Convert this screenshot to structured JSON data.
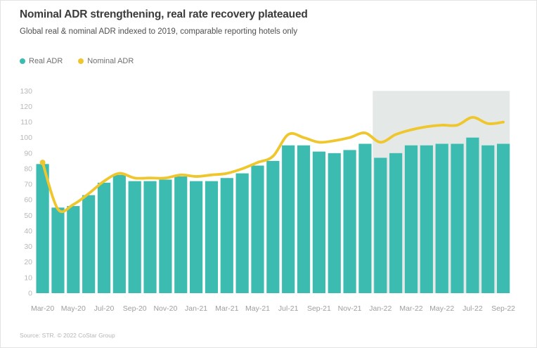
{
  "header": {
    "title": "Nominal ADR strengthening, real rate recovery plateaued",
    "subtitle": "Global real & nominal ADR indexed to 2019, comparable reporting hotels only"
  },
  "legend": {
    "items": [
      {
        "label": "Real ADR",
        "color": "#3cbcb1"
      },
      {
        "label": "Nominal ADR",
        "color": "#efc62b"
      }
    ]
  },
  "source": "Source: STR. © 2022 CoStar Group",
  "colors": {
    "bar_teal": "#3cbcb1",
    "line_yellow": "#efc62b",
    "highlight_region": "#e4e9e7",
    "y_tick_text": "#b8b8b8",
    "x_tick_text": "#9e9e9e"
  },
  "chart_data": {
    "type": "bar",
    "title": "Nominal ADR strengthening, real rate recovery plateaued",
    "subtitle": "Global real & nominal ADR indexed to 2019, comparable reporting hotels only",
    "categories": [
      "Mar-20",
      "Apr-20",
      "May-20",
      "Jun-20",
      "Jul-20",
      "Aug-20",
      "Sep-20",
      "Oct-20",
      "Nov-20",
      "Dec-20",
      "Jan-21",
      "Feb-21",
      "Mar-21",
      "Apr-21",
      "May-21",
      "Jun-21",
      "Jul-21",
      "Aug-21",
      "Sep-21",
      "Oct-21",
      "Nov-21",
      "Dec-21",
      "Jan-22",
      "Feb-22",
      "Mar-22",
      "Apr-22",
      "May-22",
      "Jun-22",
      "Jul-22",
      "Aug-22",
      "Sep-22"
    ],
    "series": [
      {
        "name": "Real ADR",
        "type": "bar",
        "color": "#3cbcb1",
        "values": [
          83,
          55,
          56,
          63,
          71,
          76,
          72,
          72,
          73,
          75,
          72,
          72,
          74,
          77,
          82,
          85,
          95,
          95,
          91,
          90,
          92,
          96,
          87,
          90,
          95,
          95,
          96,
          96,
          100,
          95,
          96
        ]
      },
      {
        "name": "Nominal ADR",
        "type": "line",
        "color": "#efc62b",
        "values": [
          84,
          54,
          57,
          64,
          72,
          77,
          74,
          74,
          74,
          76,
          75,
          76,
          77,
          80,
          84,
          88,
          102,
          100,
          97,
          98,
          100,
          103,
          97,
          102,
          105,
          107,
          108,
          108,
          113,
          109,
          110
        ]
      }
    ],
    "xlabel": "",
    "ylabel": "",
    "ylim": [
      0,
      130
    ],
    "ytick_step": 10,
    "x_tick_every": 2,
    "grid": false,
    "legend_position": "top-left",
    "highlight_region": {
      "from": "Jan-22",
      "to": "Sep-22",
      "color": "#e4e9e7",
      "ymax": 130
    }
  }
}
